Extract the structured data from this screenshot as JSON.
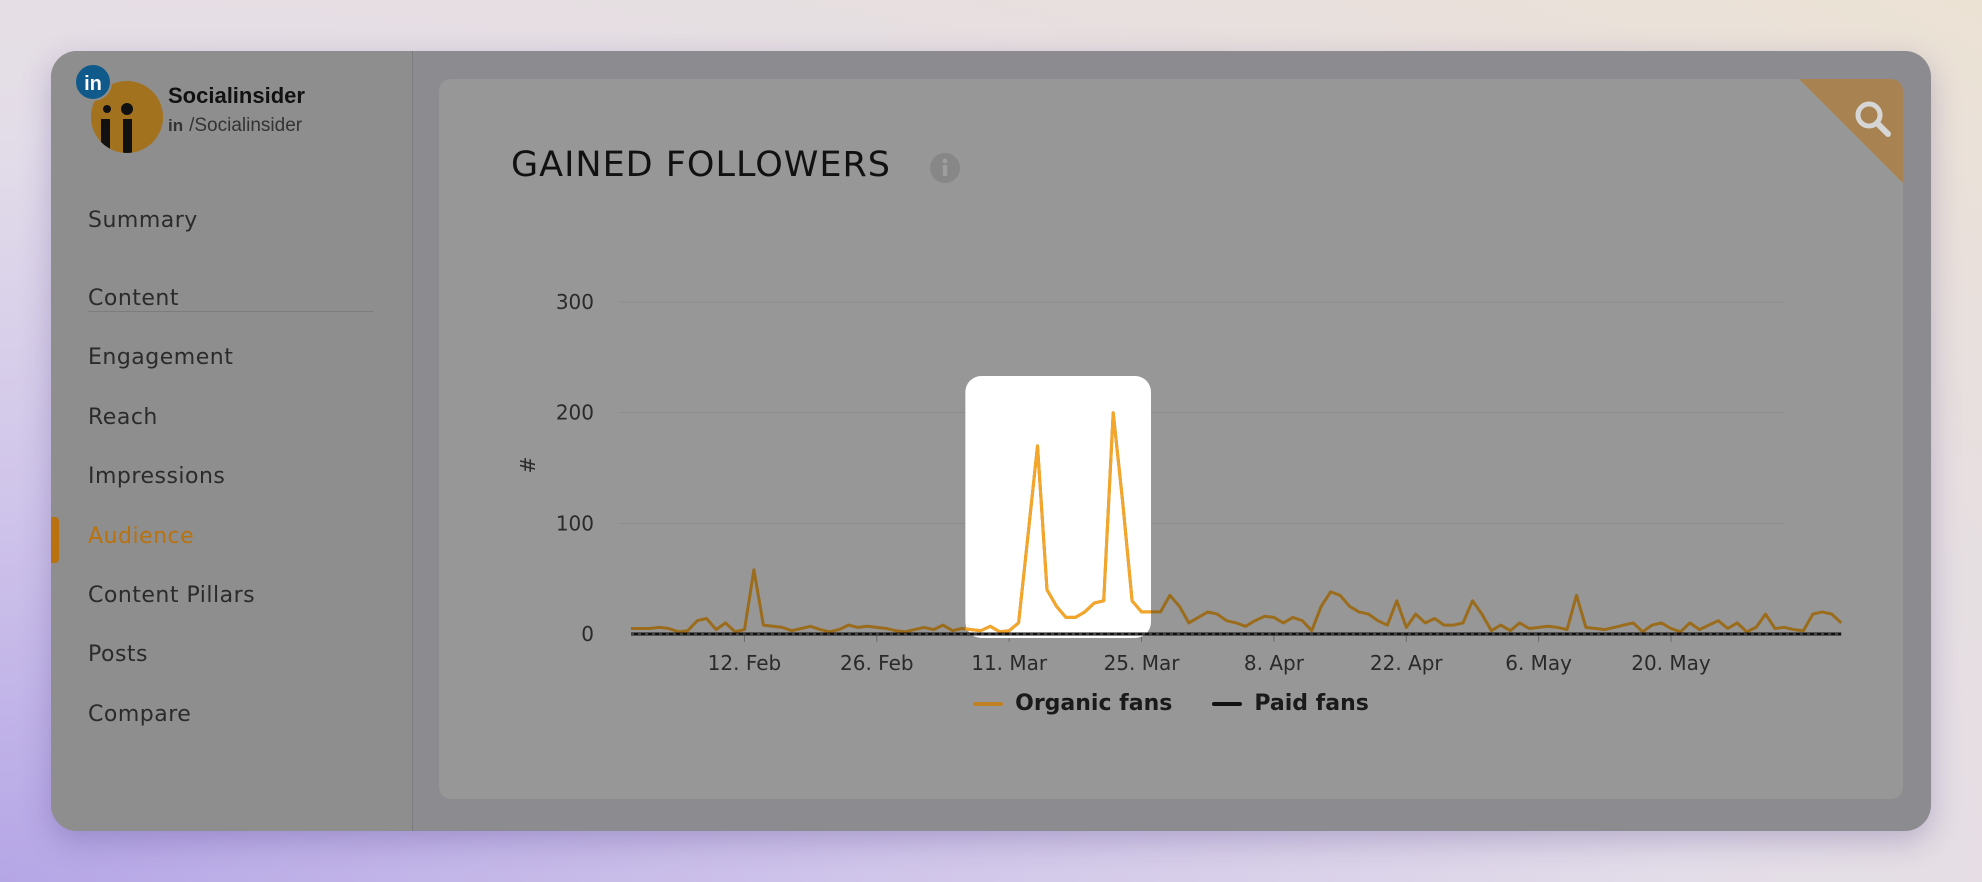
{
  "profile": {
    "badge": "in",
    "name": "Socialinsider",
    "handle_network": "in",
    "handle": "/Socialinsider"
  },
  "nav": {
    "items": [
      {
        "label": "Summary"
      },
      {
        "label": "Content"
      },
      {
        "label": "Engagement"
      },
      {
        "label": "Reach"
      },
      {
        "label": "Impressions"
      },
      {
        "label": "Audience",
        "active": true
      },
      {
        "label": "Content Pillars"
      },
      {
        "label": "Posts"
      },
      {
        "label": "Compare"
      }
    ]
  },
  "colors": {
    "accent": "#b8720f",
    "organic": "#f4a62a",
    "organic_dim": "#9a6c1c",
    "paid": "#111111",
    "grid": "#8b8b8b",
    "highlight": "#ffffff"
  },
  "icons": {
    "search": "search-icon",
    "info": "info-icon"
  },
  "chart_data": {
    "type": "line",
    "title": "GAINED FOLLOWERS",
    "ylabel": "#",
    "xlabel": "",
    "ylim": [
      0,
      300
    ],
    "yticks": [
      0,
      100,
      200,
      300
    ],
    "xticks": [
      {
        "label": "12. Feb",
        "day": 12
      },
      {
        "label": "26. Feb",
        "day": 26
      },
      {
        "label": "11. Mar",
        "day": 40
      },
      {
        "label": "25. Mar",
        "day": 54
      },
      {
        "label": "8. Apr",
        "day": 68
      },
      {
        "label": "22. Apr",
        "day": 82
      },
      {
        "label": "6. May",
        "day": 96
      },
      {
        "label": "20. May",
        "day": 110
      }
    ],
    "x_range": [
      0,
      121
    ],
    "legend": "bottom-center",
    "grid": true,
    "highlight_range": [
      36,
      55
    ],
    "series": [
      {
        "name": "Organic fans",
        "values": [
          5,
          5,
          5,
          6,
          5,
          2,
          3,
          12,
          14,
          4,
          10,
          2,
          4,
          58,
          8,
          7,
          6,
          3,
          5,
          7,
          4,
          2,
          4,
          8,
          6,
          7,
          6,
          5,
          3,
          2,
          4,
          6,
          4,
          8,
          3,
          5,
          4,
          3,
          7,
          2,
          3,
          10,
          90,
          170,
          40,
          25,
          15,
          15,
          20,
          28,
          30,
          200,
          120,
          30,
          20,
          20,
          20,
          35,
          25,
          10,
          15,
          20,
          18,
          12,
          10,
          7,
          12,
          16,
          15,
          10,
          15,
          12,
          3,
          25,
          38,
          35,
          25,
          20,
          18,
          12,
          8,
          30,
          6,
          18,
          10,
          14,
          8,
          8,
          10,
          30,
          18,
          3,
          8,
          3,
          10,
          5,
          6,
          7,
          6,
          4,
          35,
          6,
          5,
          4,
          6,
          8,
          10,
          2,
          8,
          10,
          5,
          2,
          10,
          4,
          8,
          12,
          5,
          10,
          2,
          6,
          18,
          5,
          6,
          4,
          3,
          18,
          20,
          18,
          10
        ]
      },
      {
        "name": "Paid fans",
        "values": [
          0,
          0,
          0,
          0,
          0,
          0,
          0,
          0,
          0,
          0,
          0,
          0,
          0,
          0,
          0,
          0,
          0,
          0,
          0,
          0,
          0,
          0,
          0,
          0,
          0,
          0,
          0,
          0,
          0,
          0,
          0,
          0,
          0,
          0,
          0,
          0,
          0,
          0,
          0,
          0,
          0,
          0,
          0,
          0,
          0,
          0,
          0,
          0,
          0,
          0,
          0,
          0,
          0,
          0,
          0,
          0,
          0,
          0,
          0,
          0,
          0,
          0,
          0,
          0,
          0,
          0,
          0,
          0,
          0,
          0,
          0,
          0,
          0,
          0,
          0,
          0,
          0,
          0,
          0,
          0,
          0,
          0,
          0,
          0,
          0,
          0,
          0,
          0,
          0,
          0,
          0,
          0,
          0,
          0,
          0,
          0,
          0,
          0,
          0,
          0,
          0,
          0,
          0,
          0,
          0,
          0,
          0,
          0,
          0,
          0,
          0,
          0,
          0,
          0,
          0,
          0,
          0,
          0,
          0,
          0,
          0,
          0,
          0,
          0,
          0,
          0,
          0,
          0,
          0
        ]
      }
    ]
  }
}
